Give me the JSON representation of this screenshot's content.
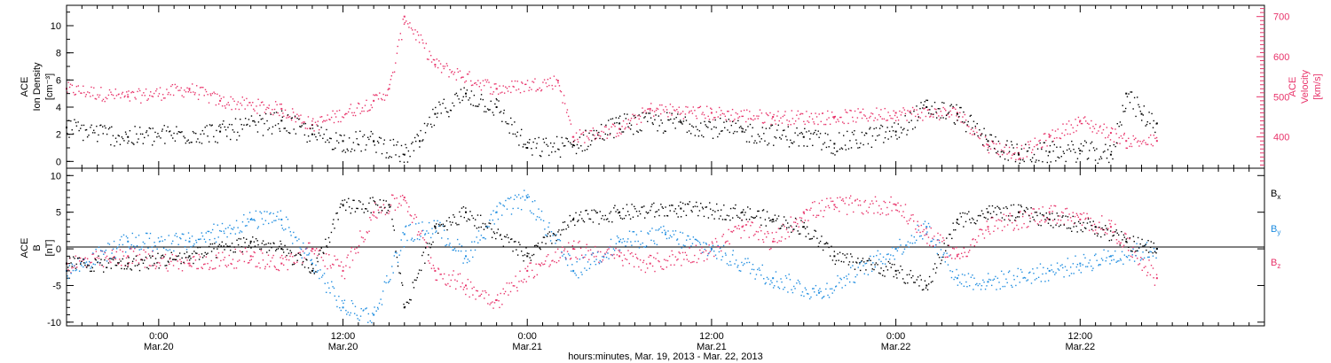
{
  "figure": {
    "xlabel": "hours:minutes, Mar. 19, 2013 - Mar. 22, 2013",
    "time_axis": {
      "start": "2013-03-19 18:00",
      "end": "2013-03-23 00:00",
      "ticks": [
        {
          "time": "0:00",
          "date": "Mar.20"
        },
        {
          "time": "12:00",
          "date": "Mar.20"
        },
        {
          "time": "0:00",
          "date": "Mar.21"
        },
        {
          "time": "12:00",
          "date": "Mar.21"
        },
        {
          "time": "0:00",
          "date": "Mar.22"
        },
        {
          "time": "12:00",
          "date": "Mar.22"
        }
      ]
    }
  },
  "colors": {
    "black": "#000000",
    "pink": "#e8336a",
    "blue": "#1f8de0"
  },
  "chart_data": [
    {
      "type": "scatter",
      "title": "",
      "left_axis": {
        "label_lines": [
          "ACE",
          "Ion Density",
          "[cm⁻³]"
        ],
        "range": [
          -0.5,
          11.5
        ],
        "ticks": [
          "0",
          "2",
          "4",
          "6",
          "8",
          "10"
        ]
      },
      "right_axis": {
        "label_lines": [
          "ACE",
          "Velocity",
          "[km/s]"
        ],
        "range": [
          322,
          728
        ],
        "ticks": [
          "400",
          "500",
          "600",
          "700"
        ]
      },
      "series": [
        {
          "axis": "left",
          "color": "black",
          "x": [
            "2013-03-19 18:00",
            "2013-03-19 22:00",
            "2013-03-20 04:00",
            "2013-03-20 08:00",
            "2013-03-20 10:00",
            "2013-03-20 12:00",
            "2013-03-20 14:00",
            "2013-03-20 16:00",
            "2013-03-20 17:00",
            "2013-03-20 18:00",
            "2013-03-20 20:00",
            "2013-03-20 22:00",
            "2013-03-21 00:00",
            "2013-03-21 03:00",
            "2013-03-21 06:00",
            "2013-03-21 10:00",
            "2013-03-21 14:00",
            "2013-03-21 18:00",
            "2013-03-21 20:00",
            "2013-03-22 00:00",
            "2013-03-22 02:00",
            "2013-03-22 04:00",
            "2013-03-22 06:00",
            "2013-03-22 08:00",
            "2013-03-22 10:00",
            "2013-03-22 12:00",
            "2013-03-22 14:00",
            "2013-03-22 15:00",
            "2013-03-22 16:00",
            "2013-03-22 17:00"
          ],
          "y": [
            2.5,
            1.8,
            2.2,
            3.0,
            2.0,
            1.5,
            1.5,
            0.5,
            1.5,
            3.5,
            5.0,
            4.0,
            1.0,
            1.2,
            2.8,
            2.9,
            2.2,
            1.8,
            1.3,
            2.2,
            4.0,
            3.5,
            1.5,
            0.5,
            0.7,
            0.8,
            0.5,
            5.0,
            3.5,
            2.8
          ]
        },
        {
          "axis": "right",
          "color": "pink",
          "x": [
            "2013-03-19 18:00",
            "2013-03-19 22:00",
            "2013-03-20 02:00",
            "2013-03-20 04:00",
            "2013-03-20 08:00",
            "2013-03-20 10:00",
            "2013-03-20 14:00",
            "2013-03-20 15:00",
            "2013-03-20 16:00",
            "2013-03-20 18:00",
            "2013-03-20 22:00",
            "2013-03-21 02:00",
            "2013-03-21 03:00",
            "2013-03-21 06:00",
            "2013-03-21 08:00",
            "2013-03-21 12:00",
            "2013-03-21 16:00",
            "2013-03-21 20:00",
            "2013-03-22 00:00",
            "2013-03-22 04:00",
            "2013-03-22 06:00",
            "2013-03-22 08:00",
            "2013-03-22 10:00",
            "2013-03-22 12:00",
            "2013-03-22 14:00",
            "2013-03-22 15:00",
            "2013-03-22 17:00"
          ],
          "y": [
            520,
            500,
            520,
            490,
            470,
            430,
            490,
            520,
            700,
            580,
            520,
            540,
            400,
            420,
            470,
            460,
            450,
            450,
            460,
            460,
            380,
            360,
            400,
            440,
            410,
            390,
            390
          ]
        }
      ]
    },
    {
      "type": "scatter",
      "title": "",
      "left_axis": {
        "label_lines": [
          "ACE",
          "B",
          "[nT]"
        ],
        "range": [
          -10.5,
          11
        ],
        "ticks": [
          "-10",
          "-5",
          "0",
          "5",
          "10"
        ]
      },
      "legend": [
        "Bx",
        "By",
        "Bz"
      ],
      "series": [
        {
          "name": "Bx",
          "color": "black",
          "x": [
            "2013-03-19 18:00",
            "2013-03-19 22:00",
            "2013-03-20 02:00",
            "2013-03-20 06:00",
            "2013-03-20 08:00",
            "2013-03-20 10:00",
            "2013-03-20 12:00",
            "2013-03-20 15:00",
            "2013-03-20 16:00",
            "2013-03-20 18:00",
            "2013-03-20 20:00",
            "2013-03-21 00:00",
            "2013-03-21 03:00",
            "2013-03-21 06:00",
            "2013-03-21 10:00",
            "2013-03-21 14:00",
            "2013-03-21 16:00",
            "2013-03-21 18:00",
            "2013-03-21 20:00",
            "2013-03-22 00:00",
            "2013-03-22 02:00",
            "2013-03-22 04:00",
            "2013-03-22 06:00",
            "2013-03-22 08:00",
            "2013-03-22 10:00",
            "2013-03-22 13:00",
            "2013-03-22 15:00",
            "2013-03-22 17:00"
          ],
          "y": [
            -2,
            -2,
            -1,
            1,
            0,
            -3,
            6,
            6,
            -8,
            3,
            5,
            -1,
            4,
            5,
            5.5,
            5,
            4,
            3,
            -1,
            -3,
            -5,
            4,
            5,
            5,
            4,
            3,
            1,
            0
          ]
        },
        {
          "name": "By",
          "color": "blue",
          "x": [
            "2013-03-19 18:00",
            "2013-03-19 22:00",
            "2013-03-20 02:00",
            "2013-03-20 06:00",
            "2013-03-20 08:00",
            "2013-03-20 10:00",
            "2013-03-20 12:00",
            "2013-03-20 14:00",
            "2013-03-20 16:00",
            "2013-03-20 18:00",
            "2013-03-20 20:00",
            "2013-03-20 22:00",
            "2013-03-21 00:00",
            "2013-03-21 03:00",
            "2013-03-21 06:00",
            "2013-03-21 09:00",
            "2013-03-21 12:00",
            "2013-03-21 16:00",
            "2013-03-21 19:00",
            "2013-03-22 00:00",
            "2013-03-22 02:00",
            "2013-03-22 04:00",
            "2013-03-22 06:00",
            "2013-03-22 10:00",
            "2013-03-22 12:00",
            "2013-03-22 14:00",
            "2013-03-22 17:00"
          ],
          "y": [
            -3,
            1,
            1,
            4,
            4,
            -2,
            -8,
            -9,
            2,
            3,
            -1,
            5,
            7,
            -3,
            1,
            2,
            0,
            -4,
            -6,
            0,
            3,
            -4,
            -4.5,
            -3,
            -2,
            -1,
            0
          ]
        },
        {
          "name": "Bz",
          "color": "pink",
          "x": [
            "2013-03-19 18:00",
            "2013-03-19 22:00",
            "2013-03-20 02:00",
            "2013-03-20 06:00",
            "2013-03-20 08:00",
            "2013-03-20 10:00",
            "2013-03-20 12:00",
            "2013-03-20 14:00",
            "2013-03-20 16:00",
            "2013-03-20 18:00",
            "2013-03-20 20:00",
            "2013-03-20 22:00",
            "2013-03-21 00:00",
            "2013-03-21 03:00",
            "2013-03-21 06:00",
            "2013-03-21 08:00",
            "2013-03-21 12:00",
            "2013-03-21 14:00",
            "2013-03-21 16:00",
            "2013-03-21 18:00",
            "2013-03-21 20:00",
            "2013-03-22 00:00",
            "2013-03-22 02:00",
            "2013-03-22 04:00",
            "2013-03-22 06:00",
            "2013-03-22 10:00",
            "2013-03-22 12:00",
            "2013-03-22 14:00",
            "2013-03-22 17:00"
          ],
          "y": [
            -2,
            -1,
            -2,
            -1,
            -2,
            0,
            -3,
            5,
            7,
            -3,
            -5,
            -7,
            -3,
            0,
            -1,
            -2,
            0,
            3,
            1,
            5,
            6,
            6,
            2,
            -1,
            3,
            5,
            4,
            3,
            -4
          ]
        }
      ]
    }
  ]
}
